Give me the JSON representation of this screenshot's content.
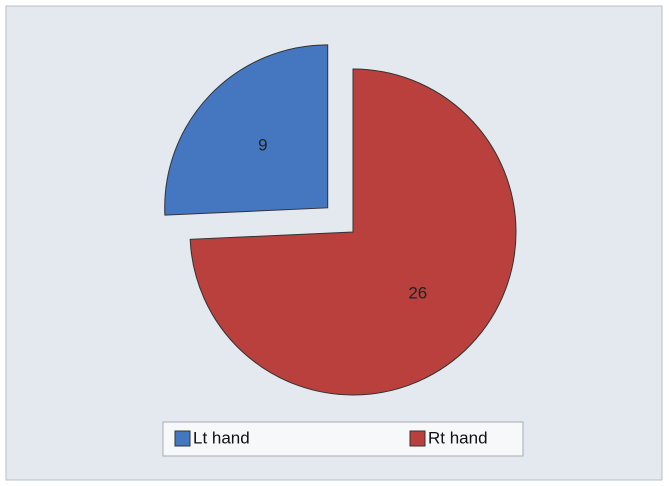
{
  "chart_data": {
    "type": "pie",
    "categories": [
      "Lt hand",
      "Rt hand"
    ],
    "values": [
      9,
      26
    ],
    "colors": [
      "#4477c0",
      "#b9403c"
    ],
    "exploded": [
      true,
      false
    ],
    "legend": "bottom"
  }
}
